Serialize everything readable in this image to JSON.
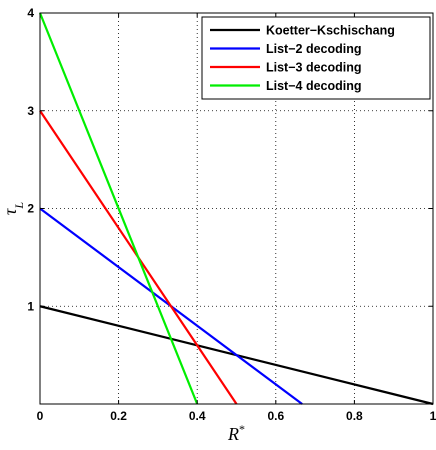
{
  "chart_data": {
    "type": "line",
    "title": "",
    "xlabel_main": "R",
    "xlabel_sup": "*",
    "ylabel_main": "τ",
    "ylabel_sub": "L",
    "xlim": [
      0,
      1
    ],
    "ylim": [
      0,
      4
    ],
    "xticks": [
      0,
      0.2,
      0.4,
      0.6,
      0.8,
      1
    ],
    "xtick_labels": [
      "0",
      "0.2",
      "0.4",
      "0.6",
      "0.8",
      "1"
    ],
    "yticks": [
      0,
      1,
      2,
      3,
      4
    ],
    "ytick_labels": [
      "",
      "1",
      "2",
      "3",
      "4"
    ],
    "grid": true,
    "legend_position": "top-right",
    "series": [
      {
        "name": "Koetter−Kschischang",
        "color": "#000000",
        "x": [
          0,
          1
        ],
        "y": [
          1,
          0
        ]
      },
      {
        "name": "List−2 decoding",
        "color": "#0000ff",
        "x": [
          0,
          0.667
        ],
        "y": [
          2,
          0
        ]
      },
      {
        "name": "List−3 decoding",
        "color": "#ff0000",
        "x": [
          0,
          0.5
        ],
        "y": [
          3,
          0
        ]
      },
      {
        "name": "List−4 decoding",
        "color": "#00ee00",
        "x": [
          0,
          0.4
        ],
        "y": [
          4,
          0
        ]
      }
    ]
  }
}
